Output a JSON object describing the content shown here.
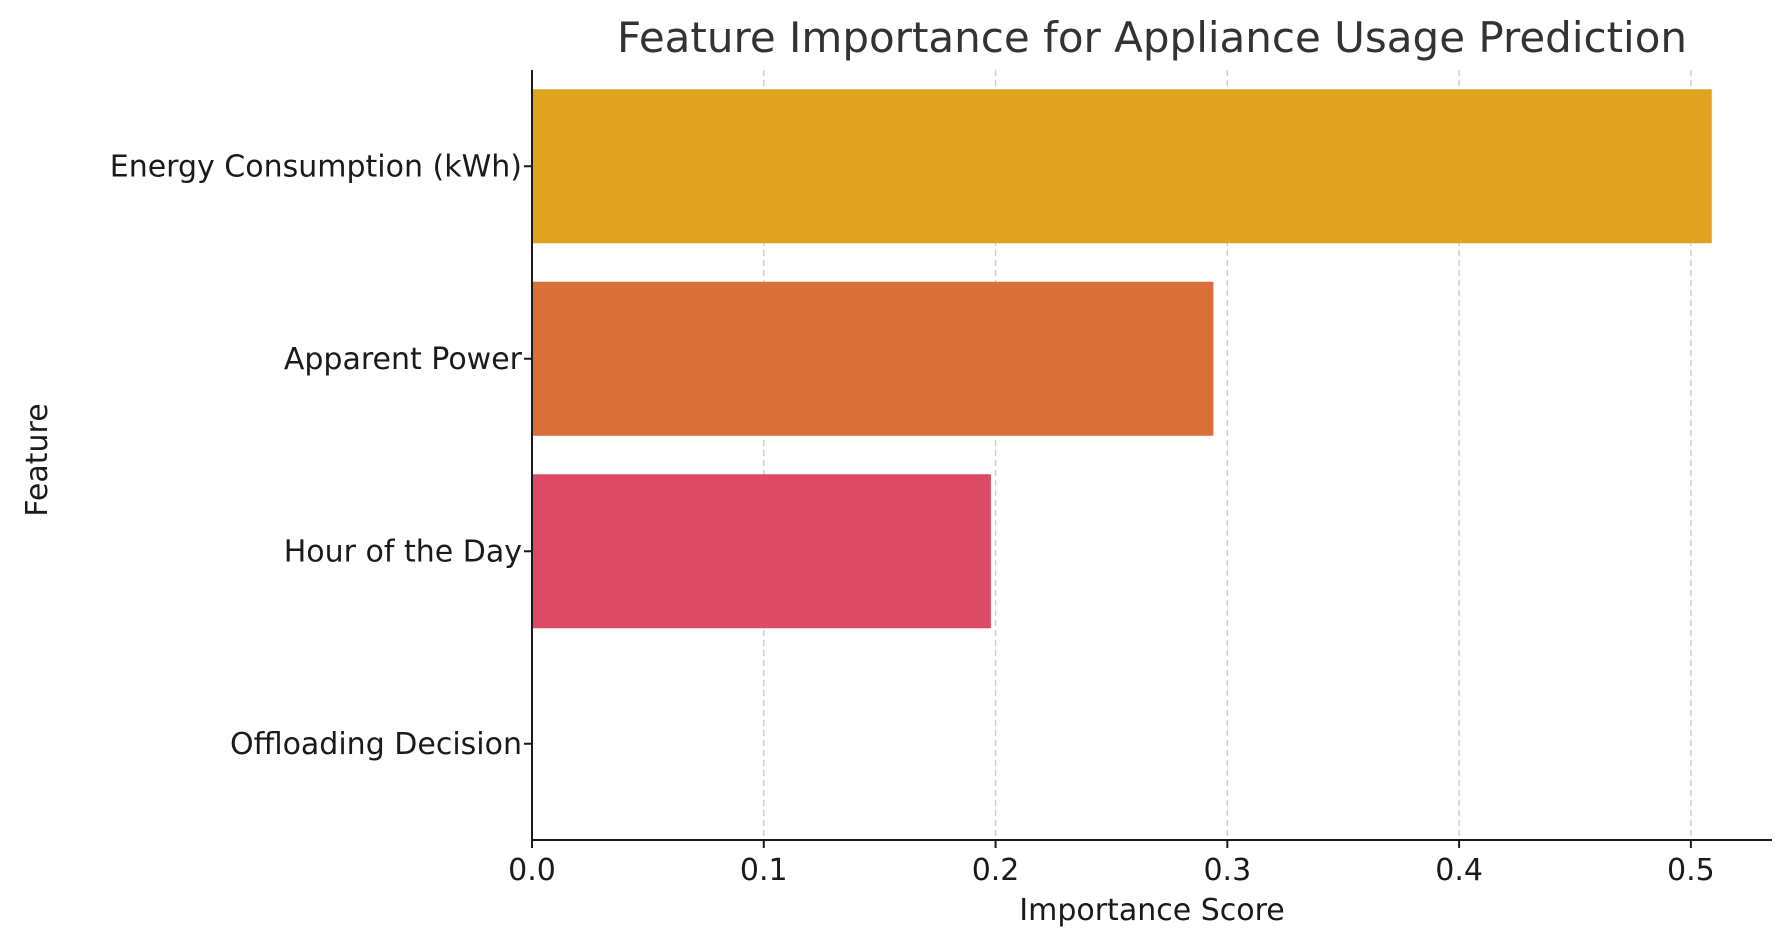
{
  "chart_data": {
    "type": "bar",
    "orientation": "horizontal",
    "title": "Feature Importance for Appliance Usage Prediction",
    "xlabel": "Importance Score",
    "ylabel": "Feature",
    "categories": [
      "Energy Consumption (kWh)",
      "Apparent Power",
      "Hour of the Day",
      "Offloading Decision"
    ],
    "values": [
      0.509,
      0.294,
      0.198,
      0.0
    ],
    "colors": [
      "#dfa320",
      "#d9703a",
      "#dc4a66",
      "#b9237a"
    ],
    "xlim": [
      0,
      0.535
    ],
    "xticks": [
      0.0,
      0.1,
      0.2,
      0.3,
      0.4,
      0.5
    ],
    "xtick_labels": [
      "0.0",
      "0.1",
      "0.2",
      "0.3",
      "0.4",
      "0.5"
    ],
    "grid": {
      "x": true,
      "y": false,
      "style": "dashed"
    },
    "legend": "none"
  }
}
